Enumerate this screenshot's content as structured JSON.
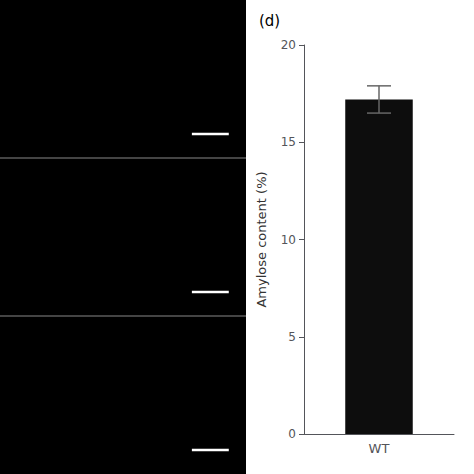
{
  "chart_data": {
    "type": "bar",
    "title": "(d)",
    "categories": [
      "WT"
    ],
    "values": [
      17.2
    ],
    "errors": [
      0.7
    ],
    "color": "#0d0d0d",
    "ylabel": "Amylose content (%)",
    "ylim": [
      0,
      20
    ],
    "yticks": [
      0,
      5,
      10,
      15,
      20
    ],
    "grid": false
  }
}
